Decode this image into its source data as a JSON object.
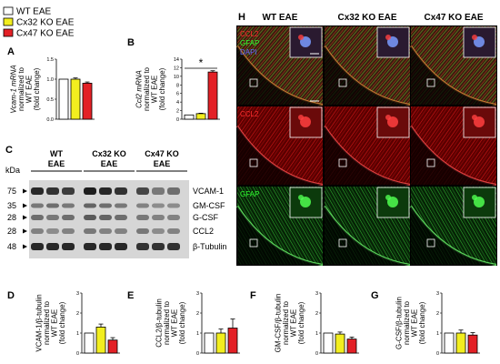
{
  "legend": {
    "items": [
      {
        "label": "WT EAE",
        "color": "#ffffff"
      },
      {
        "label": "Cx32 KO EAE",
        "color": "#f2ee1f"
      },
      {
        "label": "Cx47 KO EAE",
        "color": "#e32026"
      }
    ]
  },
  "panels": {
    "A": "A",
    "B": "B",
    "C": "C",
    "D": "D",
    "E": "E",
    "F": "F",
    "G": "G",
    "H": "H"
  },
  "significance": "*",
  "blot": {
    "kda_label": "kDa",
    "groups": [
      {
        "line1": "WT",
        "line2": "EAE"
      },
      {
        "line1": "Cx32 KO",
        "line2": "EAE"
      },
      {
        "line1": "Cx47 KO",
        "line2": "EAE"
      }
    ],
    "bands": [
      {
        "kda": "75",
        "protein": "VCAM-1"
      },
      {
        "kda": "35",
        "protein": "GM-CSF"
      },
      {
        "kda": "28",
        "protein": "G-CSF"
      },
      {
        "kda": "28",
        "protein": "CCL2"
      },
      {
        "kda": "48",
        "protein": "β-Tubulin"
      }
    ]
  },
  "micro": {
    "columns": [
      "WT EAE",
      "Cx32 KO EAE",
      "Cx47 KO EAE"
    ],
    "row_labels": [
      [
        "CCL2",
        "GFAP",
        "DAPI"
      ],
      [
        "CCL2"
      ],
      [
        "GFAP"
      ]
    ],
    "row_label_colors": [
      [
        "#ff3030",
        "#30ff30",
        "#5b6bff"
      ],
      [
        "#ff3030"
      ],
      [
        "#30ff30"
      ]
    ]
  },
  "chart_data": [
    {
      "id": "A",
      "type": "bar",
      "categories": [
        "WT EAE",
        "Cx32 KO EAE",
        "Cx47 KO EAE"
      ],
      "values": [
        1.0,
        1.0,
        0.9
      ],
      "errors": [
        0,
        0.03,
        0.03
      ],
      "ylim": [
        0,
        1.5
      ],
      "yticks": [
        "0.0",
        "0.5",
        "1.0",
        "1.5"
      ],
      "ylabel": [
        "Vcam-1 mRNA",
        "normalized to",
        "WT EAE",
        "(fold change)"
      ]
    },
    {
      "id": "B",
      "type": "bar",
      "categories": [
        "WT EAE",
        "Cx32 KO EAE",
        "Cx47 KO EAE"
      ],
      "values": [
        1.0,
        1.3,
        11.0
      ],
      "errors": [
        0,
        0.1,
        0.3
      ],
      "ylim": [
        0,
        14
      ],
      "yticks": [
        "0",
        "2",
        "4",
        "6",
        "8",
        "10",
        "12",
        "14"
      ],
      "ylabel": [
        "Ccl2 mRNA",
        "normalized to",
        "WT EAE",
        "(fold change)"
      ]
    },
    {
      "id": "D",
      "type": "bar",
      "categories": [
        "WT EAE",
        "Cx32 KO EAE",
        "Cx47 KO EAE"
      ],
      "values": [
        1.0,
        1.3,
        0.65
      ],
      "errors": [
        0,
        0.15,
        0.12
      ],
      "ylim": [
        0,
        3
      ],
      "yticks": [
        "0",
        "1",
        "2",
        "3"
      ],
      "ylabel": [
        "VCAM-1/β-tubulin",
        "normalized to",
        "WT EAE",
        "(fold change)"
      ]
    },
    {
      "id": "E",
      "type": "bar",
      "categories": [
        "WT EAE",
        "Cx32 KO EAE",
        "Cx47 KO EAE"
      ],
      "values": [
        1.0,
        1.0,
        1.25
      ],
      "errors": [
        0,
        0.2,
        0.45
      ],
      "ylim": [
        0,
        3
      ],
      "yticks": [
        "0",
        "1",
        "2",
        "3"
      ],
      "ylabel": [
        "CCL2/β-tubulin",
        "normalized to",
        "WT EAE",
        "(fold change)"
      ]
    },
    {
      "id": "F",
      "type": "bar",
      "categories": [
        "WT EAE",
        "Cx32 KO EAE",
        "Cx47 KO EAE"
      ],
      "values": [
        1.0,
        0.95,
        0.7
      ],
      "errors": [
        0,
        0.1,
        0.1
      ],
      "ylim": [
        0,
        3
      ],
      "yticks": [
        "0",
        "1",
        "2",
        "3"
      ],
      "ylabel": [
        "GM-CSF/β-tubulin",
        "normalized to",
        "WT EAE",
        "(fold change)"
      ]
    },
    {
      "id": "G",
      "type": "bar",
      "categories": [
        "WT EAE",
        "Cx32 KO EAE",
        "Cx47 KO EAE"
      ],
      "values": [
        1.0,
        1.0,
        0.9
      ],
      "errors": [
        0,
        0.15,
        0.12
      ],
      "ylim": [
        0,
        3
      ],
      "yticks": [
        "0",
        "1",
        "2",
        "3"
      ],
      "ylabel": [
        "G-CSF/β-tubulin",
        "normalized to",
        "WT EAE",
        "(fold change)"
      ]
    }
  ]
}
